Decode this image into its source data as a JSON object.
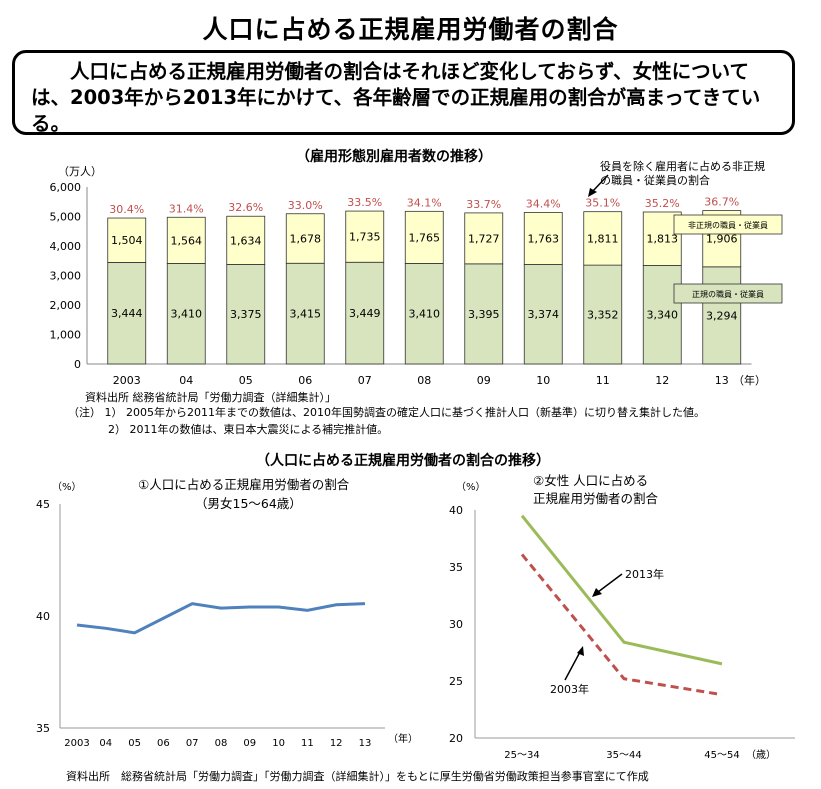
{
  "title": "人口に占める正規雇用労働者の割合",
  "summary": "人口に占める正規雇用労働者の割合はそれほど変化しておらず、女性については、2003年から2013年にかけて、各年齢層での正規雇用の割合が高まってきている。",
  "footer_source": "資料出所　総務省統計局「労働力調査」「労働力調査（詳細集計）」をもとに厚生労働省労働政策担当参事官室にて作成",
  "section2_title": "（人口に占める正規雇用労働者の割合の推移）",
  "chart_data": [
    {
      "type": "bar",
      "title": "（雇用形態別雇用者数の推移）",
      "ylabel": "（万人）",
      "xunit": "（年）",
      "ylim": [
        0,
        6000
      ],
      "yticks": [
        "0",
        "1,000",
        "2,000",
        "3,000",
        "4,000",
        "5,000",
        "6,000"
      ],
      "categories": [
        "2003",
        "04",
        "05",
        "06",
        "07",
        "08",
        "09",
        "10",
        "11",
        "12",
        "13"
      ],
      "series": [
        {
          "name": "正規の職員・従業員",
          "values": [
            3444,
            3410,
            3375,
            3415,
            3449,
            3410,
            3395,
            3374,
            3352,
            3340,
            3294
          ],
          "labels": [
            "3,444",
            "3,410",
            "3,375",
            "3,415",
            "3,449",
            "3,410",
            "3,395",
            "3,374",
            "3,352",
            "3,340",
            "3,294"
          ],
          "color": "#d7e4bd"
        },
        {
          "name": "非正規の職員・従業員",
          "values": [
            1504,
            1564,
            1634,
            1678,
            1735,
            1765,
            1727,
            1763,
            1811,
            1813,
            1906
          ],
          "labels": [
            "1,504",
            "1,564",
            "1,634",
            "1,678",
            "1,735",
            "1,765",
            "1,727",
            "1,763",
            "1,811",
            "1,813",
            "1,906"
          ],
          "color": "#ffffcc"
        }
      ],
      "ratio_labels": [
        "30.4%",
        "31.4%",
        "32.6%",
        "33.0%",
        "33.5%",
        "34.1%",
        "33.7%",
        "34.4%",
        "35.1%",
        "35.2%",
        "36.7%"
      ],
      "ratio_color": "#c0504d",
      "annotation": "役員を除く雇用者に占める非正規の職員・従業員の割合",
      "source": "資料出所 総務省統計局「労働力調査（詳細集計）」",
      "notes": [
        "（注） 1） 2005年から2011年までの数値は、2010年国勢調査の確定人口に基づく推計人口（新基準）に切り替え集計した値。",
        "2） 2011年の数値は、東日本大震災による補完推計値。"
      ]
    },
    {
      "type": "line",
      "title": "①人口に占める正規雇用労働者の割合",
      "subtitle": "（男女15～64歳）",
      "ylabel": "（%）",
      "xunit": "（年）",
      "ylim": [
        35,
        45
      ],
      "yticks": [
        "35",
        "40",
        "45"
      ],
      "categories": [
        "2003",
        "04",
        "05",
        "06",
        "07",
        "08",
        "09",
        "10",
        "11",
        "12",
        "13"
      ],
      "series": [
        {
          "values": [
            39.6,
            39.45,
            39.25,
            39.9,
            40.55,
            40.35,
            40.4,
            40.4,
            40.25,
            40.5,
            40.55
          ],
          "color": "#4f81bd"
        }
      ]
    },
    {
      "type": "line",
      "title": "②女性 人口に占める",
      "subtitle": "正規雇用労働者の割合",
      "ylabel": "（%）",
      "xunit": "（歳）",
      "ylim": [
        20,
        40
      ],
      "yticks": [
        "20",
        "25",
        "30",
        "35",
        "40"
      ],
      "categories": [
        "25～34",
        "35～44",
        "45～54"
      ],
      "series": [
        {
          "name": "2013年",
          "values": [
            39.5,
            28.4,
            26.5
          ],
          "color": "#9bbb59",
          "dash": false
        },
        {
          "name": "2003年",
          "values": [
            36.1,
            25.2,
            23.8
          ],
          "color": "#c0504d",
          "dash": true
        }
      ]
    }
  ]
}
